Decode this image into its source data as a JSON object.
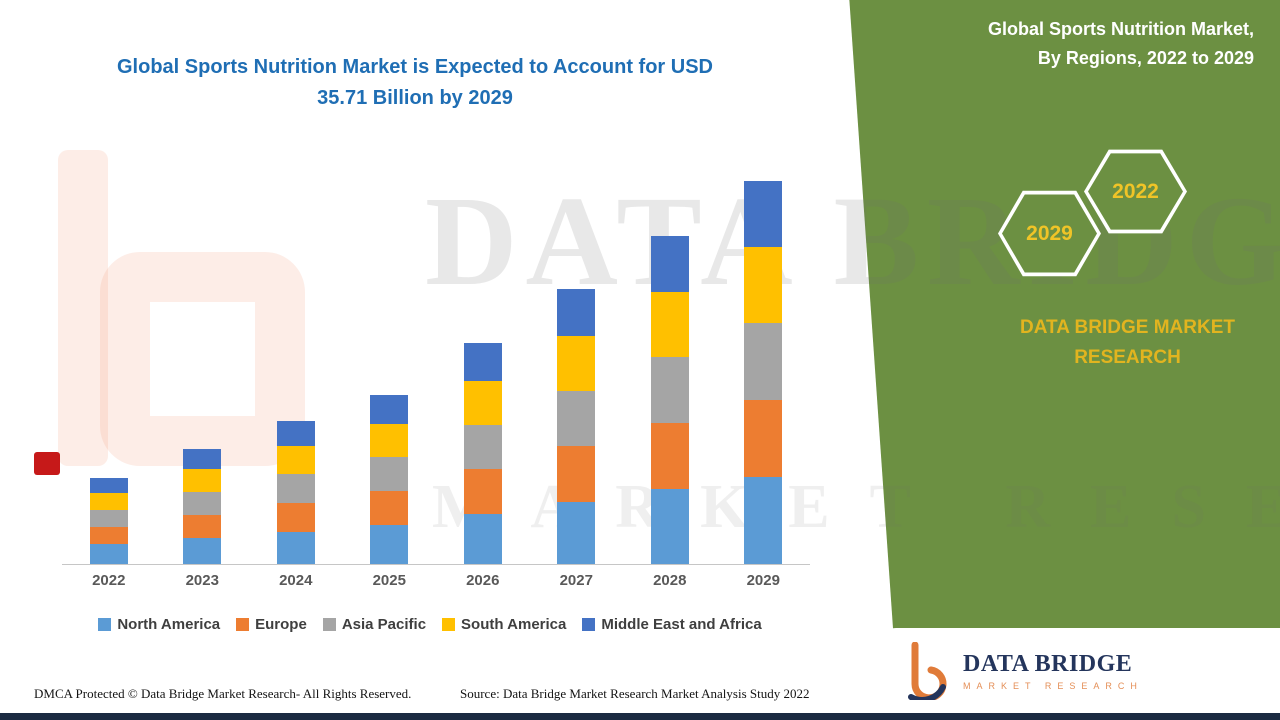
{
  "header": {
    "title_line1": "Global Sports Nutrition Market is Expected to Account for USD",
    "title_line2": "35.71 Billion by 2029"
  },
  "side_panel": {
    "heading_line1": "Global Sports Nutrition Market,",
    "heading_line2": "By Regions, 2022 to 2029",
    "hexagon_left": "2029",
    "hexagon_right": "2022",
    "brand_line1": "DATA BRIDGE MARKET",
    "brand_line2": "RESEARCH"
  },
  "watermark": {
    "line1": "DATA BRIDGE",
    "line2": "MARKET RESEARCH"
  },
  "footer": {
    "dmca": "DMCA Protected © Data Bridge Market Research- All Rights Reserved.",
    "source": "Source: Data Bridge Market Research Market Analysis Study 2022"
  },
  "logo_box": {
    "name": "DATA BRIDGE",
    "tagline": "MARKET RESEARCH"
  },
  "colors": {
    "panel_green": "#6C9042",
    "title_blue": "#1F6EB4",
    "brand_gold": "#E2B41F"
  },
  "chart_data": {
    "type": "bar",
    "stacked": true,
    "title": "Global Sports Nutrition Market is Expected to Account for USD 35.71 Billion by 2029",
    "xlabel": "",
    "ylabel": "",
    "ylim": [
      0,
      36
    ],
    "grid": false,
    "legend_position": "bottom",
    "categories": [
      "2022",
      "2023",
      "2024",
      "2025",
      "2026",
      "2027",
      "2028",
      "2029"
    ],
    "series": [
      {
        "name": "North America",
        "color": "#5B9BD5",
        "values": [
          1.9,
          2.4,
          3.0,
          3.6,
          4.7,
          5.8,
          7.0,
          8.1
        ]
      },
      {
        "name": "Europe",
        "color": "#ED7D31",
        "values": [
          1.6,
          2.1,
          2.7,
          3.2,
          4.2,
          5.2,
          6.2,
          7.2
        ]
      },
      {
        "name": "Asia Pacific",
        "color": "#A5A5A5",
        "values": [
          1.6,
          2.1,
          2.7,
          3.2,
          4.1,
          5.1,
          6.2,
          7.2
        ]
      },
      {
        "name": "South America",
        "color": "#FFC000",
        "values": [
          1.6,
          2.1,
          2.6,
          3.1,
          4.1,
          5.1,
          6.1,
          7.1
        ]
      },
      {
        "name": "Middle East and Africa",
        "color": "#4472C4",
        "values": [
          1.4,
          1.9,
          2.3,
          2.7,
          3.5,
          4.4,
          5.2,
          6.11
        ]
      }
    ],
    "totals": [
      8.1,
      10.6,
      13.3,
      15.8,
      20.6,
      25.6,
      30.7,
      35.71
    ]
  }
}
